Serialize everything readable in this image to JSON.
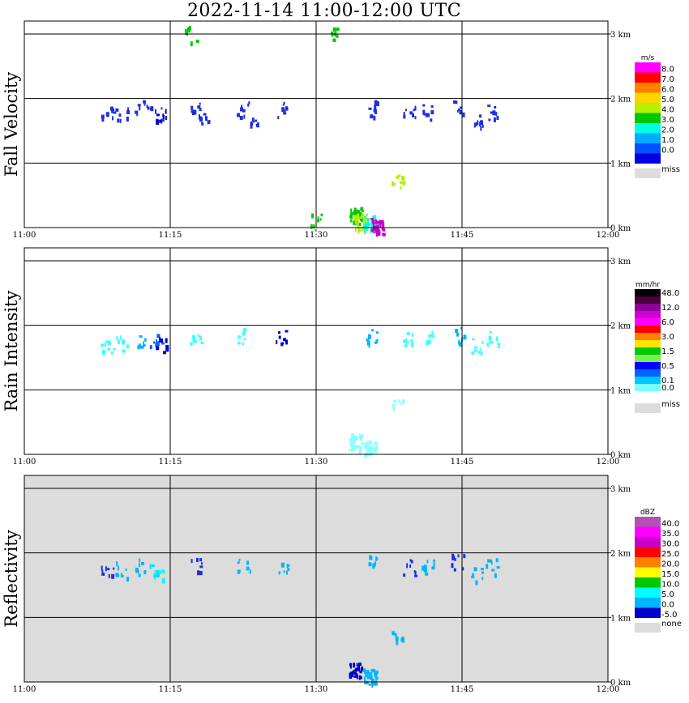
{
  "title": "2022-11-14   11:00-12:00 UTC",
  "chart_data": [
    {
      "type": "heatmap",
      "ylabel": "Fall Velocity",
      "unit": "m/s",
      "background": "#ffffff",
      "xticks": [
        "11:00",
        "11:15",
        "11:30",
        "11:45",
        "12:00"
      ],
      "yticks": [
        "0 km",
        "1 km",
        "2 km",
        "3 km"
      ],
      "ylim": [
        0,
        3.2
      ],
      "xlim": [
        0,
        60
      ],
      "grid": true,
      "legend": [
        {
          "label": "8.0",
          "color": "#ff00ff"
        },
        {
          "label": "7.0",
          "color": "#ff0000"
        },
        {
          "label": "6.0",
          "color": "#ff7f00"
        },
        {
          "label": "5.0",
          "color": "#ffd400"
        },
        {
          "label": "4.0",
          "color": "#b4f000"
        },
        {
          "label": "3.0",
          "color": "#00c800"
        },
        {
          "label": "2.0",
          "color": "#00ffe0"
        },
        {
          "label": "1.0",
          "color": "#00aaff"
        },
        {
          "label": "0.0",
          "color": "#0050ff"
        },
        {
          "label": "",
          "color": "#0000e0"
        }
      ],
      "miss_label": "miss",
      "blobs": [
        {
          "t": 8.5,
          "h": 1.75,
          "color": "#1f2fe0"
        },
        {
          "t": 10.0,
          "h": 1.77,
          "color": "#1f2fe0"
        },
        {
          "t": 12.0,
          "h": 1.85,
          "color": "#1f2fe0"
        },
        {
          "t": 13.5,
          "h": 1.78,
          "color": "#1f2fe0"
        },
        {
          "t": 14.0,
          "h": 1.72,
          "color": "#0000c8"
        },
        {
          "t": 17.5,
          "h": 1.82,
          "color": "#1f2fe0"
        },
        {
          "t": 18.5,
          "h": 1.7,
          "color": "#1f2fe0"
        },
        {
          "t": 22.5,
          "h": 1.85,
          "color": "#1f2fe0"
        },
        {
          "t": 23.5,
          "h": 1.7,
          "color": "#1f2fe0"
        },
        {
          "t": 26.5,
          "h": 1.83,
          "color": "#1f2fe0"
        },
        {
          "t": 35.5,
          "h": 1.85,
          "color": "#1f2fe0"
        },
        {
          "t": 39.5,
          "h": 1.78,
          "color": "#1f2fe0"
        },
        {
          "t": 41.5,
          "h": 1.8,
          "color": "#1f2fe0"
        },
        {
          "t": 44.5,
          "h": 1.87,
          "color": "#1f2fe0"
        },
        {
          "t": 46.5,
          "h": 1.7,
          "color": "#1f2fe0"
        },
        {
          "t": 48.0,
          "h": 1.8,
          "color": "#1f2fe0"
        },
        {
          "t": 34.0,
          "h": 0.2,
          "color": "#00c800"
        },
        {
          "t": 34.5,
          "h": 0.1,
          "color": "#b4f000"
        },
        {
          "t": 35.5,
          "h": 0.08,
          "color": "#00ffe0"
        },
        {
          "t": 38.3,
          "h": 0.75,
          "color": "#b4f000"
        },
        {
          "t": 36.2,
          "h": 0.04,
          "color": "#c800c8"
        },
        {
          "t": 30.0,
          "h": 0.1,
          "color": "#00c800"
        },
        {
          "t": 17.0,
          "h": 3.0,
          "color": "#00c800"
        },
        {
          "t": 32.0,
          "h": 3.0,
          "color": "#00c800"
        }
      ]
    },
    {
      "type": "heatmap",
      "ylabel": "Rain Intensity",
      "unit": "mm/hr",
      "background": "#ffffff",
      "xticks": [
        "11:00",
        "11:15",
        "11:30",
        "11:45",
        "12:00"
      ],
      "yticks": [
        "0 km",
        "1 km",
        "2 km",
        "3 km"
      ],
      "ylim": [
        0,
        3.2
      ],
      "xlim": [
        0,
        60
      ],
      "grid": true,
      "legend": [
        {
          "label": "48.0",
          "color": "#000000"
        },
        {
          "label": "",
          "color": "#4a0040"
        },
        {
          "label": "12.0",
          "color": "#8c0096"
        },
        {
          "label": "",
          "color": "#d200d2"
        },
        {
          "label": "6.0",
          "color": "#ff00ff"
        },
        {
          "label": "",
          "color": "#ff0000"
        },
        {
          "label": "3.0",
          "color": "#ff7f00"
        },
        {
          "label": "",
          "color": "#ffe600"
        },
        {
          "label": "1.5",
          "color": "#00c800"
        },
        {
          "label": "",
          "color": "#78f050"
        },
        {
          "label": "0.5",
          "color": "#0000ff"
        },
        {
          "label": "",
          "color": "#0064ff"
        },
        {
          "label": "0.1",
          "color": "#00c8ff"
        },
        {
          "label": "0.0",
          "color": "#78ffff"
        },
        {
          "label": "",
          "color": "#ffffff"
        }
      ],
      "miss_label": "miss",
      "blobs": [
        {
          "t": 8.5,
          "h": 1.72,
          "color": "#3cffff"
        },
        {
          "t": 10.0,
          "h": 1.75,
          "color": "#3cffff"
        },
        {
          "t": 12.0,
          "h": 1.8,
          "color": "#00b4ff"
        },
        {
          "t": 13.5,
          "h": 1.75,
          "color": "#0064ff"
        },
        {
          "t": 14.0,
          "h": 1.7,
          "color": "#0000c8"
        },
        {
          "t": 17.5,
          "h": 1.82,
          "color": "#3cffff"
        },
        {
          "t": 22.5,
          "h": 1.85,
          "color": "#3cffff"
        },
        {
          "t": 26.5,
          "h": 1.83,
          "color": "#0000c8"
        },
        {
          "t": 35.5,
          "h": 1.85,
          "color": "#00b4ff"
        },
        {
          "t": 39.5,
          "h": 1.78,
          "color": "#3cffff"
        },
        {
          "t": 41.5,
          "h": 1.8,
          "color": "#3cffff"
        },
        {
          "t": 44.5,
          "h": 1.87,
          "color": "#00b4ff"
        },
        {
          "t": 46.5,
          "h": 1.7,
          "color": "#3cffff"
        },
        {
          "t": 48.0,
          "h": 1.8,
          "color": "#3cffff"
        },
        {
          "t": 34.0,
          "h": 0.2,
          "color": "#8cffff"
        },
        {
          "t": 35.5,
          "h": 0.1,
          "color": "#8cffff"
        },
        {
          "t": 38.3,
          "h": 0.75,
          "color": "#8cffff"
        }
      ]
    },
    {
      "type": "heatmap",
      "ylabel": "Reflectivity",
      "unit": "dBZ",
      "background": "#dcdcdc",
      "xticks": [
        "11:00",
        "11:15",
        "11:30",
        "11:45",
        "12:00"
      ],
      "yticks": [
        "0 km",
        "1 km",
        "2 km",
        "3 km"
      ],
      "ylim": [
        0,
        3.2
      ],
      "xlim": [
        0,
        60
      ],
      "grid": true,
      "legend": [
        {
          "label": "40.0",
          "color": "#b450b4"
        },
        {
          "label": "35.0",
          "color": "#ff00ff"
        },
        {
          "label": "30.0",
          "color": "#c800c8"
        },
        {
          "label": "25.0",
          "color": "#ff0000"
        },
        {
          "label": "20.0",
          "color": "#ff7f00"
        },
        {
          "label": "15.0",
          "color": "#ffff00"
        },
        {
          "label": "10.0",
          "color": "#00c800"
        },
        {
          "label": "5.0",
          "color": "#00ffff"
        },
        {
          "label": "0.0",
          "color": "#00b4ff"
        },
        {
          "label": "-5.0",
          "color": "#0000c8"
        }
      ],
      "miss_label": "none",
      "blobs": [
        {
          "t": 8.5,
          "h": 1.72,
          "color": "#1f2fe0"
        },
        {
          "t": 10.0,
          "h": 1.75,
          "color": "#00b4ff"
        },
        {
          "t": 12.0,
          "h": 1.8,
          "color": "#00b4ff"
        },
        {
          "t": 13.5,
          "h": 1.75,
          "color": "#00e0ff"
        },
        {
          "t": 14.0,
          "h": 1.7,
          "color": "#00ffff"
        },
        {
          "t": 17.5,
          "h": 1.82,
          "color": "#1f2fe0"
        },
        {
          "t": 22.5,
          "h": 1.85,
          "color": "#00b4ff"
        },
        {
          "t": 26.5,
          "h": 1.83,
          "color": "#00b4ff"
        },
        {
          "t": 35.5,
          "h": 1.85,
          "color": "#00b4ff"
        },
        {
          "t": 39.5,
          "h": 1.78,
          "color": "#1f2fe0"
        },
        {
          "t": 41.5,
          "h": 1.8,
          "color": "#00b4ff"
        },
        {
          "t": 44.5,
          "h": 1.87,
          "color": "#1f2fe0"
        },
        {
          "t": 46.5,
          "h": 1.7,
          "color": "#00b4ff"
        },
        {
          "t": 48.0,
          "h": 1.8,
          "color": "#00b4ff"
        },
        {
          "t": 34.0,
          "h": 0.2,
          "color": "#0000c8"
        },
        {
          "t": 35.5,
          "h": 0.1,
          "color": "#00b4ff"
        },
        {
          "t": 38.3,
          "h": 0.75,
          "color": "#00b4ff"
        }
      ]
    }
  ]
}
